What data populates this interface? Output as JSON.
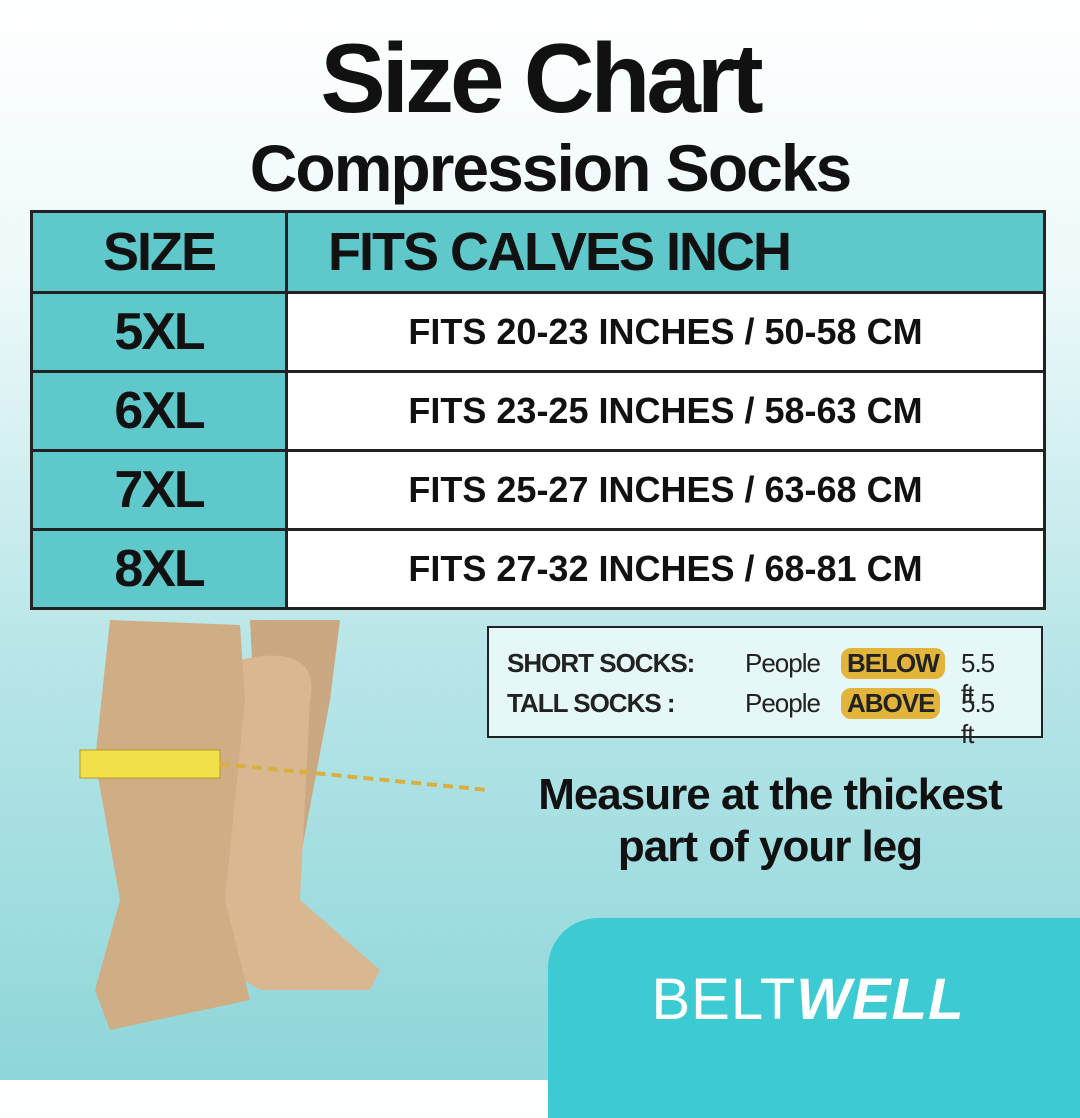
{
  "header": {
    "title": "Size Chart",
    "subtitle": "Compression Socks"
  },
  "table": {
    "columns": [
      "SIZE",
      "FITS CALVES INCH"
    ],
    "rows": [
      [
        "5XL",
        "FITS 20-23 INCHES / 50-58 CM"
      ],
      [
        "6XL",
        "FITS 23-25 INCHES / 58-63 CM"
      ],
      [
        "7XL",
        "FITS 25-27 INCHES / 63-68 CM"
      ],
      [
        "8XL",
        "FITS 27-32 INCHES / 68-81 CM"
      ]
    ]
  },
  "height_guide": [
    {
      "label": "SHORT SOCKS:",
      "people": "People",
      "relation": "BELOW",
      "height": "5.5 ft"
    },
    {
      "label": "TALL SOCKS :",
      "people": "People",
      "relation": "ABOVE",
      "height": "5.5 ft"
    }
  ],
  "measure_note": [
    "Measure at the thickest",
    "part of your leg"
  ],
  "brand": {
    "part1": "BELT",
    "part2": "WELL"
  }
}
